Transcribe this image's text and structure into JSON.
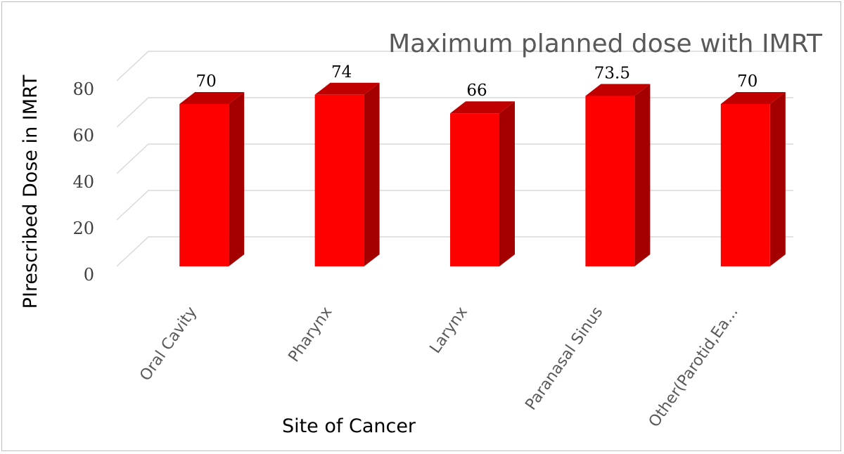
{
  "chart_data": {
    "type": "bar",
    "style": "3d-column",
    "title": "Maximum planned dose with IMRT",
    "xlabel": "Site of Cancer",
    "ylabel": "PIrescribed Dose in IMRT",
    "categories": [
      "Oral Cavity",
      "Pharynx",
      "Larynx",
      "Paranasal Sinus",
      "Other(Parotid,Ea..."
    ],
    "values": [
      70,
      74,
      66,
      73.5,
      70
    ],
    "data_labels": [
      "70",
      "74",
      "66",
      "73.5",
      "70"
    ],
    "ylim": [
      0,
      80
    ],
    "yticks": [
      0,
      20,
      40,
      60,
      80
    ],
    "ytick_labels": [
      "0",
      "20",
      "40",
      "60",
      "80"
    ],
    "grid": true,
    "legend": "none",
    "colors": {
      "bar_front": "#ff0000",
      "bar_side": "#a50000",
      "bar_top": "#c00000"
    }
  }
}
